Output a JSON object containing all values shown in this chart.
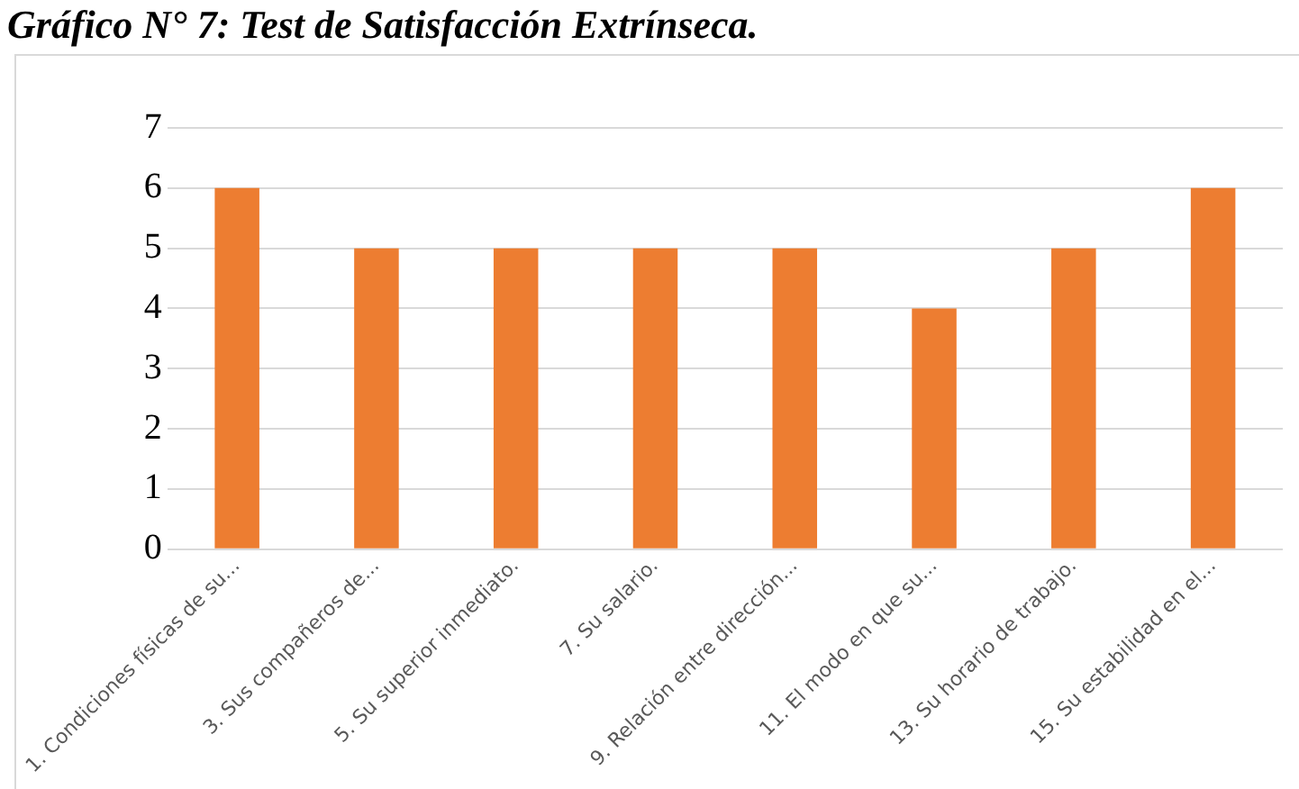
{
  "chart_data": {
    "type": "bar",
    "title": "Gráfico N° 7: Test de Satisfacción Extrínseca.",
    "categories": [
      "1. Condiciones físicas de su...",
      "3. Sus compañeros de...",
      "5. Su superior inmediato.",
      "7. Su salario.",
      "9. Relación entre dirección...",
      "11. El modo en que su...",
      "13. Su horario de trabajo.",
      "15. Su estabilidad en el..."
    ],
    "values": [
      6,
      5,
      5,
      5,
      5,
      4,
      5,
      6
    ],
    "color": "#ed7d31",
    "ylim": [
      0,
      7
    ],
    "yticks": [
      0,
      1,
      2,
      3,
      4,
      5,
      6,
      7
    ],
    "grid": "y",
    "legend": false
  }
}
